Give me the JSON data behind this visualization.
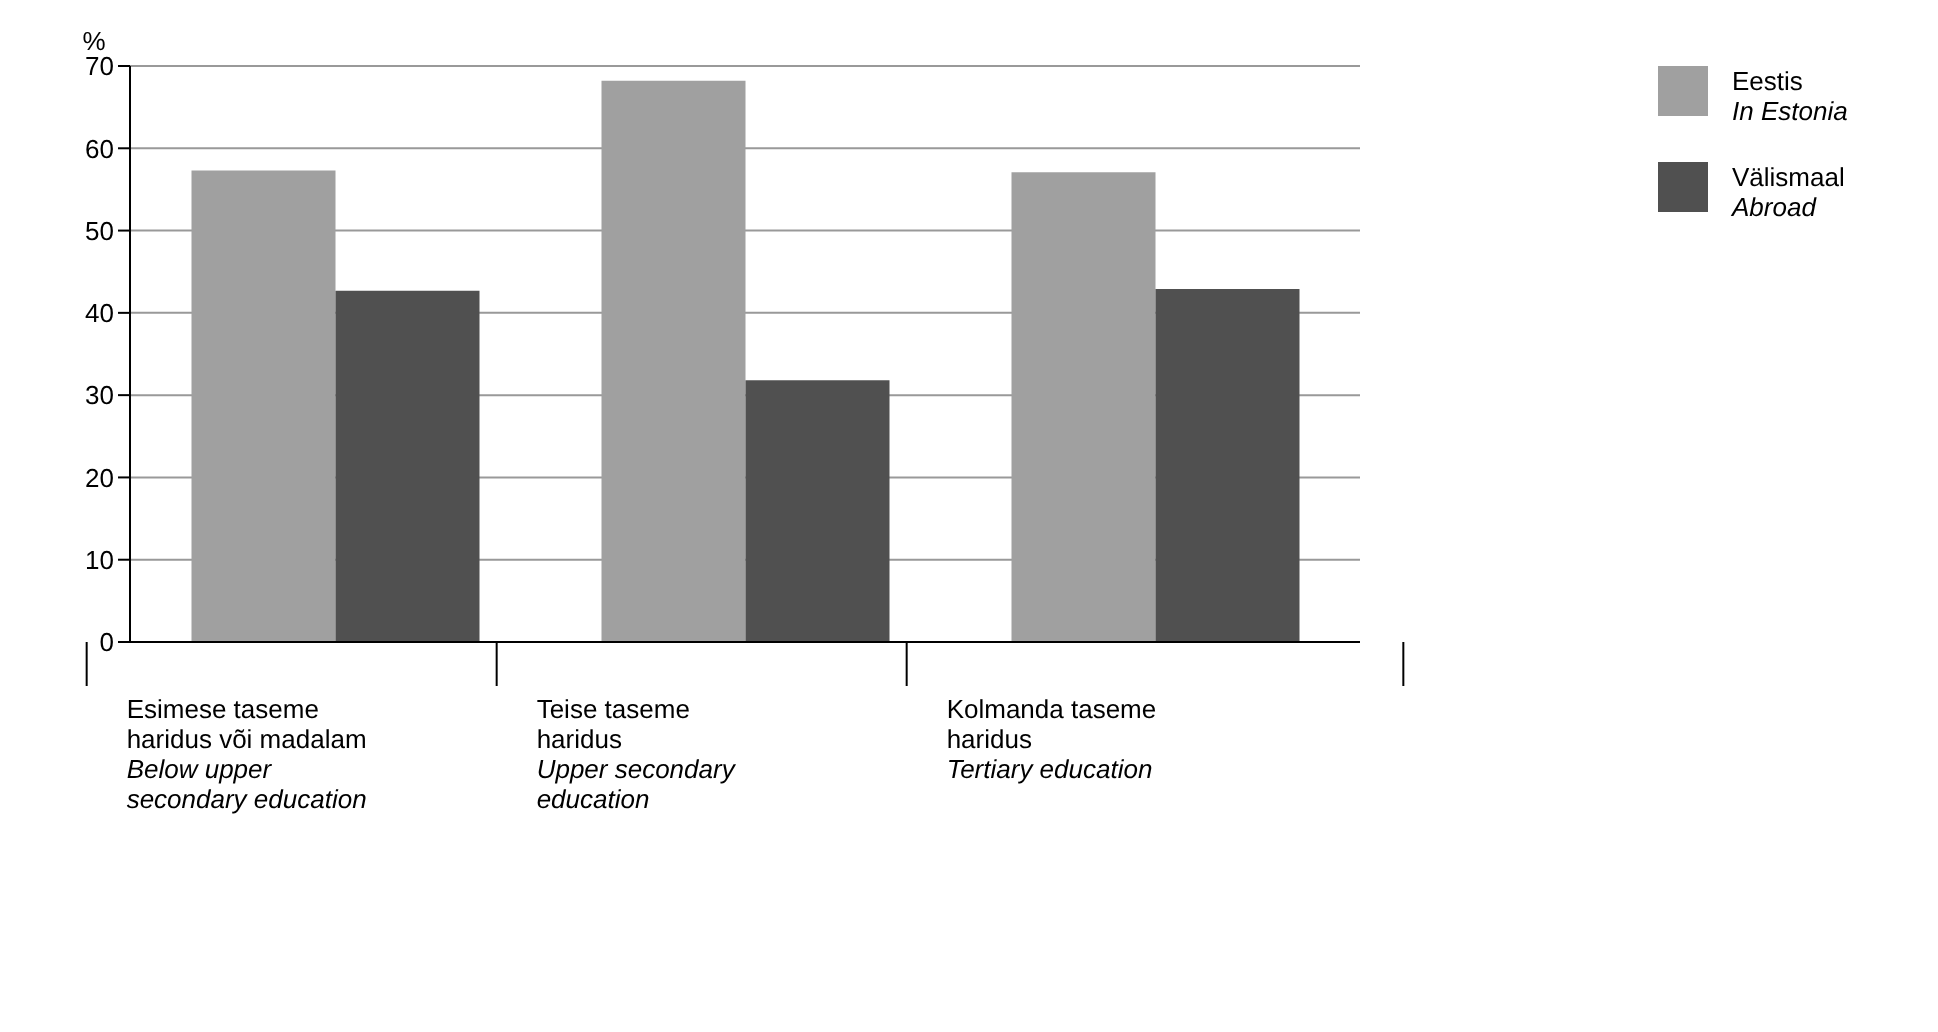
{
  "chart_data": {
    "type": "bar",
    "ylabel": "%",
    "categories": [
      "Esimese taseme\nharidus või madalam\n\nBelow upper\nsecondary education",
      "Teise taseme\nharidus\n\nUpper secondary\neducation",
      "Kolmanda taseme\nharidus\n\nTertiary education"
    ],
    "series": [
      {
        "name": "Eestis\n\nIn Estonia",
        "color": "#a0a0a0",
        "values": [
          57.3,
          68.2,
          57.1
        ]
      },
      {
        "name": "Välismaal\n\nAbroad",
        "color": "#505050",
        "values": [
          42.7,
          31.8,
          42.9
        ]
      }
    ],
    "ylim": [
      0,
      70
    ],
    "yticks": [
      0,
      10,
      20,
      30,
      40,
      50,
      60,
      70
    ],
    "grid": "y",
    "legend": "top right"
  }
}
